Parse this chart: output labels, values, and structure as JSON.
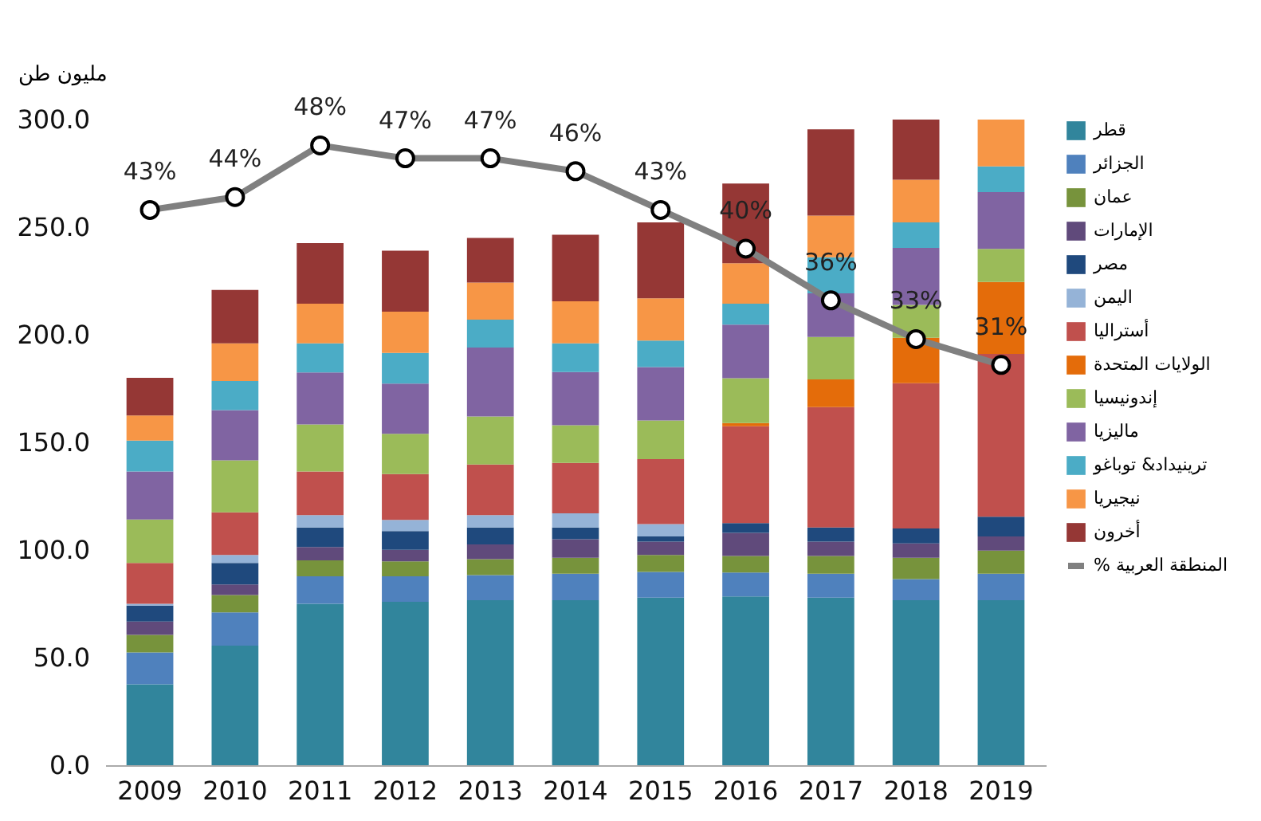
{
  "chart_data": {
    "type": "bar",
    "stacked": true,
    "ylabel": "مليون طن",
    "categories": [
      "2009",
      "2010",
      "2011",
      "2012",
      "2013",
      "2014",
      "2015",
      "2016",
      "2017",
      "2018",
      "2019"
    ],
    "ylim": [
      0,
      300
    ],
    "yticks": [
      {
        "value": 0,
        "label": "0.0"
      },
      {
        "value": 50,
        "label": "50.0"
      },
      {
        "value": 100,
        "label": "100.0"
      },
      {
        "value": 150,
        "label": "150.0"
      },
      {
        "value": 200,
        "label": "200.0"
      },
      {
        "value": 250,
        "label": "250.0"
      },
      {
        "value": 300,
        "label": "300.0"
      }
    ],
    "y2lim": [
      0,
      50
    ],
    "legend": "right",
    "grid": false,
    "series": [
      {
        "name": "قطر",
        "color": "#31859c",
        "values": [
          37.6,
          55.6,
          75,
          75.9,
          76.7,
          76.7,
          77.9,
          78.4,
          77.9,
          76.7,
          76.7
        ]
      },
      {
        "name": "الجزائر",
        "color": "#4f81bd",
        "values": [
          14.8,
          15.4,
          12.8,
          11.9,
          11.6,
          12.3,
          11.9,
          11.1,
          11.1,
          9.8,
          12.3
        ]
      },
      {
        "name": "عمان",
        "color": "#77933c",
        "values": [
          8.2,
          8.1,
          7.4,
          6.9,
          7.4,
          7.4,
          7.9,
          7.7,
          8.2,
          9.9,
          10.7
        ]
      },
      {
        "name": "الإمارات",
        "color": "#604a7b",
        "values": [
          6.2,
          4.9,
          6.2,
          5.4,
          6.9,
          8.6,
          6.2,
          10.8,
          6.7,
          6.7,
          6.6
        ]
      },
      {
        "name": "مصر",
        "color": "#1f497d",
        "values": [
          7.4,
          10,
          9.1,
          8.7,
          7.9,
          5.5,
          2.4,
          4.5,
          6.6,
          6.9,
          9.2
        ]
      },
      {
        "name": "اليمن",
        "color": "#95b3d7",
        "values": [
          0.8,
          3.7,
          5.7,
          5.2,
          5.7,
          6.5,
          5.7,
          0,
          0,
          0,
          0
        ]
      },
      {
        "name": "أستراليا",
        "color": "#c0504d",
        "values": [
          19,
          19.8,
          20.3,
          21.3,
          23.5,
          23.5,
          30.2,
          45,
          55.9,
          67.5,
          75.6
        ]
      },
      {
        "name": "الولايات المتحدة",
        "color": "#e46c0a",
        "values": [
          0,
          0,
          0,
          0,
          0,
          0,
          0,
          1.5,
          12.9,
          21.1,
          33.4
        ]
      },
      {
        "name": "إندونيسيا",
        "color": "#9bbb59",
        "values": [
          20.2,
          24.2,
          21.8,
          18.7,
          22.3,
          17.5,
          18,
          20.8,
          19.7,
          15.3,
          15.4
        ]
      },
      {
        "name": "ماليزيا",
        "color": "#8064a2",
        "values": [
          22.3,
          23.3,
          24.2,
          23.3,
          32.1,
          24.7,
          24.8,
          24.9,
          20.3,
          26.5,
          26.4
        ]
      },
      {
        "name": "ترينيداد& توباغو",
        "color": "#4bacc6",
        "values": [
          14.3,
          13.5,
          13.5,
          14.3,
          12.9,
          13.3,
          12.3,
          9.7,
          16.7,
          11.8,
          11.9
        ]
      },
      {
        "name": "نيجيريا",
        "color": "#f79646",
        "values": [
          11.7,
          17.5,
          18.4,
          19.1,
          17.3,
          19.6,
          19.6,
          18.8,
          19.4,
          19.8,
          21.8
        ]
      },
      {
        "name": "أخرون",
        "color": "#953735",
        "values": [
          17.5,
          24.8,
          28.2,
          28.4,
          20.7,
          30.9,
          35.3,
          37.1,
          40.1,
          28,
          null
        ]
      },
      {
        "name": "% المنطقة العربية",
        "type": "line",
        "axis": "y2",
        "color": "#808080",
        "marker": "circle",
        "values": [
          43,
          44,
          48,
          47,
          47,
          46,
          43,
          40,
          36,
          33,
          31
        ],
        "value_labels": [
          "43%",
          "44%",
          "48%",
          "47%",
          "47%",
          "46%",
          "43%",
          "40%",
          "36%",
          "33%",
          "31%"
        ]
      }
    ]
  }
}
